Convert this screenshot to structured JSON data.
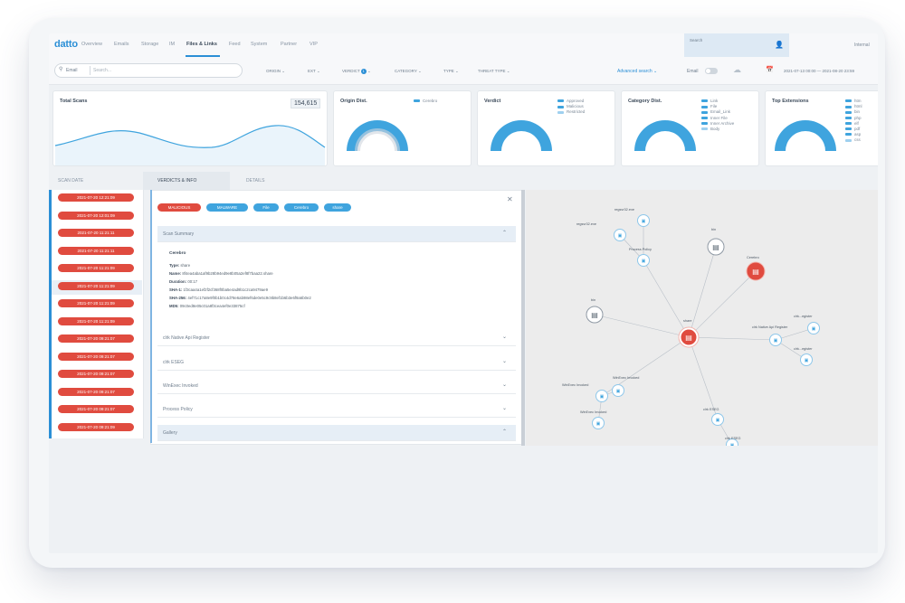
{
  "nav": {
    "logo": "datto",
    "items": [
      "Overview",
      "Emails",
      "Storage",
      "IM",
      "Files & Links",
      "Feed",
      "System",
      "Partner",
      "VIP"
    ],
    "active_index": 4,
    "user_label": "Search",
    "internal": "Internal"
  },
  "filters": {
    "search_scope": "Email",
    "search_placeholder": "Search...",
    "dropdowns": [
      "Origin",
      "Ext",
      "Verdict",
      "Category",
      "Type",
      "Threat Type"
    ],
    "verdict_count": "1",
    "advanced_search": "Advanced search",
    "realtime_label": "Email",
    "date_range": "2021-07-13 00:00 — 2021-08-20 23:59"
  },
  "cards": {
    "total_scans": {
      "title": "Total Scans",
      "value": "154,615"
    },
    "origin": {
      "title": "Origin Dist.",
      "legend": [
        "Cerebro"
      ]
    },
    "verdict": {
      "title": "Verdict",
      "legend": [
        "Approved",
        "Malicious",
        "Restricted"
      ]
    },
    "category": {
      "title": "Category Dist.",
      "legend": [
        "Link",
        "File",
        "Email_Link",
        "Inner File",
        "Inner Archive",
        "Body"
      ]
    },
    "extensions": {
      "title": "Top Extensions",
      "legend": [
        "htm",
        "html",
        "bin",
        "php",
        "elf",
        "pdf",
        "asp",
        "css"
      ]
    }
  },
  "tabs": [
    "SCAN DATE",
    "VERDICTS & INFO",
    "DETAILS"
  ],
  "scan_dates": [
    "2021-07-20 12:21:09",
    "2021-07-20 12:01:09",
    "2021-07-20 11:21:11",
    "2021-07-20 11:21:11",
    "2021-07-20 11:21:09",
    "2021-07-20 11:21:09",
    "2021-07-20 11:21:09",
    "2021-07-20 11:21:09",
    "2021-07-20 09:21:07",
    "2021-07-20 09:21:07",
    "2021-07-20 09:21:07",
    "2021-07-20 09:21:07",
    "2021-07-20 09:21:07",
    "2021-07-20 09:21:09"
  ],
  "selected_row": 5,
  "tags": [
    {
      "label": "MALICIOUS",
      "color": "#e04b3f"
    },
    {
      "label": "MALWARE",
      "color": "#3fa4de"
    },
    {
      "label": "File",
      "color": "#3fa4de"
    },
    {
      "label": "Cerebro",
      "color": "#3fa4de"
    },
    {
      "label": "share",
      "color": "#3fa4de"
    }
  ],
  "sections": {
    "scan_summary": "Scan Summary",
    "collapsed": [
      "clrk Native Api Register",
      "clrk ESEG",
      "WinExec Invoked",
      "Process Policy"
    ],
    "gallery": "Gallery"
  },
  "summary": {
    "engine": "Cerebro",
    "fields": [
      {
        "key": "Type:",
        "value": "share"
      },
      {
        "key": "Name:",
        "value": "8f4ea4aba1af9b28b94ed9e8b05a2ef8f7baa22.share"
      },
      {
        "key": "Duration:",
        "value": "00:17"
      },
      {
        "key": "SHA-1:",
        "value": "1f3caa4a1ef2f2cf368f0ba5e4ad9b1c2ca9479ae9"
      },
      {
        "key": "SHA-256:",
        "value": "4ef71c17a8e9f0b1b0c4d78e6ab98ef6de0e5c9c9b8ef1b6b3e6f9a6b0e2"
      },
      {
        "key": "MD5:",
        "value": "09c0ed8e05c01a8f3cea4ef0e33875cf"
      }
    ]
  },
  "graph": {
    "center_label": "share",
    "nodes": [
      {
        "label": "regsvr32.exe"
      },
      {
        "label": "regsvr32.exe"
      },
      {
        "label": "Process Policy"
      },
      {
        "label": "bin"
      },
      {
        "label": "Cerebro"
      },
      {
        "label": "bin"
      },
      {
        "label": "clrk Native Api Register"
      },
      {
        "label": "clrk...egister"
      },
      {
        "label": "clrk...egister"
      },
      {
        "label": "WinExec Invoked"
      },
      {
        "label": "WinExec Invoked"
      },
      {
        "label": "WinExec Invoked"
      },
      {
        "label": "clrk ESEG"
      },
      {
        "label": "clrk ESEG"
      }
    ]
  },
  "colors": {
    "accent": "#2b8fd6",
    "danger": "#e04b3f",
    "chart": "#3fa4de"
  }
}
